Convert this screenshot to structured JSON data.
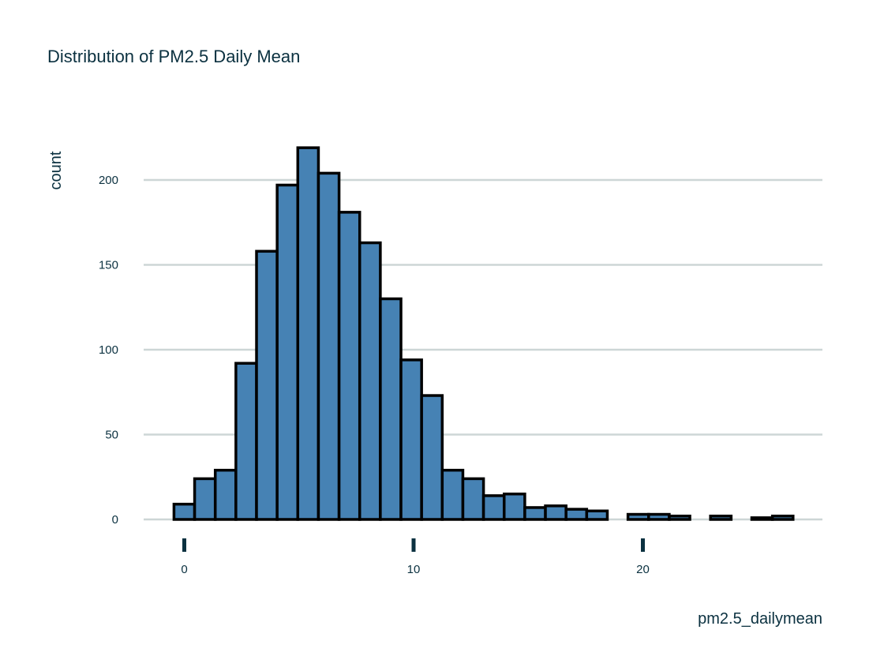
{
  "chart_data": {
    "type": "bar",
    "title": "Distribution of PM2.5 Daily Mean",
    "xlabel": "pm2.5_dailymean",
    "ylabel": "count",
    "bin_width": 0.9,
    "bin_starts": [
      -0.45,
      0.45,
      1.35,
      2.25,
      3.15,
      4.05,
      4.95,
      5.85,
      6.75,
      7.65,
      8.55,
      9.45,
      10.35,
      11.25,
      12.15,
      13.05,
      13.95,
      14.85,
      15.75,
      16.65,
      17.55,
      18.45,
      19.35,
      20.25,
      21.15,
      22.05,
      22.95,
      23.85,
      24.75,
      25.65
    ],
    "values": [
      9,
      24,
      29,
      92,
      158,
      197,
      219,
      204,
      181,
      163,
      130,
      94,
      73,
      29,
      24,
      14,
      15,
      7,
      8,
      6,
      5,
      0,
      3,
      3,
      2,
      0,
      2,
      0,
      1,
      2
    ],
    "x_ticks": [
      0,
      10,
      20
    ],
    "y_ticks": [
      0,
      50,
      100,
      150,
      200
    ],
    "xlim": [
      -1.1,
      27.6
    ],
    "ylim": [
      0,
      225
    ],
    "bar_fill": "#4682b4",
    "bar_stroke": "#000000",
    "grid": "horizontal",
    "legend": "none"
  }
}
